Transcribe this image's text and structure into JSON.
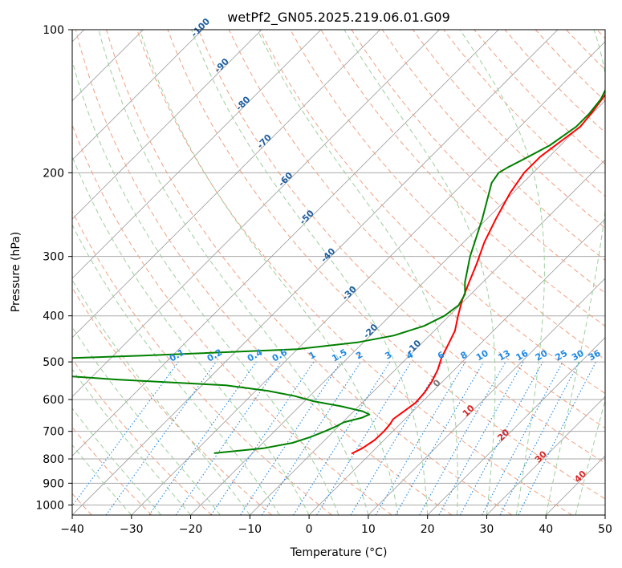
{
  "chart_data": {
    "type": "line",
    "title": "wetPf2_GN05.2025.219.06.01.G09",
    "xlabel": "Temperature (°C)",
    "ylabel": "Pressure (hPa)",
    "xlim": [
      -40,
      50
    ],
    "ylim": [
      1050,
      100
    ],
    "yscale": "log",
    "x_ticks": [
      "−40",
      "−30",
      "−20",
      "−10",
      "0",
      "10",
      "20",
      "30",
      "40",
      "50"
    ],
    "x_tick_values": [
      -40,
      -30,
      -20,
      -10,
      0,
      10,
      20,
      30,
      40,
      50
    ],
    "y_ticks": [
      "100",
      "200",
      "300",
      "400",
      "500",
      "600",
      "700",
      "800",
      "900",
      "1000"
    ],
    "y_tick_values": [
      100,
      200,
      300,
      400,
      500,
      600,
      700,
      800,
      900,
      1000
    ],
    "grid": true,
    "series": [
      {
        "color": "#ff0000",
        "points": [
          [
            780,
            -3.2
          ],
          [
            760,
            -2.3
          ],
          [
            730,
            -1.6
          ],
          [
            700,
            -1.5
          ],
          [
            675,
            -1.7
          ],
          [
            660,
            -2.0
          ],
          [
            640,
            -1.6
          ],
          [
            610,
            -1.0
          ],
          [
            580,
            -1.2
          ],
          [
            550,
            -1.8
          ],
          [
            520,
            -2.8
          ],
          [
            490,
            -4.2
          ],
          [
            460,
            -5.3
          ],
          [
            430,
            -6.5
          ],
          [
            400,
            -8.5
          ],
          [
            370,
            -10.5
          ],
          [
            340,
            -12.3
          ],
          [
            310,
            -14.2
          ],
          [
            280,
            -16.5
          ],
          [
            250,
            -18.5
          ],
          [
            220,
            -20.5
          ],
          [
            200,
            -21.5
          ],
          [
            185,
            -21.5
          ],
          [
            170,
            -20.5
          ],
          [
            160,
            -19.8
          ],
          [
            150,
            -20.2
          ],
          [
            140,
            -20.8
          ],
          [
            130,
            -21.5
          ],
          [
            120,
            -23.0
          ],
          [
            110,
            -24.8
          ],
          [
            100,
            -27.0
          ]
        ]
      },
      {
        "color": "#008000",
        "points": [
          [
            778,
            -26.5
          ],
          [
            760,
            -19.0
          ],
          [
            740,
            -15.0
          ],
          [
            720,
            -13.0
          ],
          [
            700,
            -11.5
          ],
          [
            685,
            -10.5
          ],
          [
            670,
            -9.8
          ],
          [
            655,
            -7.5
          ],
          [
            645,
            -6.8
          ],
          [
            635,
            -8.5
          ],
          [
            620,
            -13.0
          ],
          [
            605,
            -18.5
          ],
          [
            590,
            -22.5
          ],
          [
            575,
            -28.0
          ],
          [
            560,
            -36.0
          ],
          [
            545,
            -55.0
          ],
          [
            520,
            -80.0
          ],
          [
            510,
            -80.0
          ],
          [
            495,
            -75.0
          ],
          [
            485,
            -55.0
          ],
          [
            470,
            -30.0
          ],
          [
            455,
            -21.0
          ],
          [
            440,
            -16.0
          ],
          [
            420,
            -12.5
          ],
          [
            400,
            -10.8
          ],
          [
            380,
            -10.2
          ],
          [
            360,
            -11.0
          ],
          [
            340,
            -13.0
          ],
          [
            300,
            -16.5
          ],
          [
            250,
            -20.8
          ],
          [
            210,
            -25.3
          ],
          [
            200,
            -25.8
          ],
          [
            195,
            -25.2
          ],
          [
            185,
            -23.5
          ],
          [
            175,
            -21.8
          ],
          [
            160,
            -20.5
          ],
          [
            150,
            -20.5
          ],
          [
            140,
            -21.0
          ],
          [
            130,
            -22.3
          ],
          [
            120,
            -23.5
          ],
          [
            110,
            -25.0
          ],
          [
            100,
            -27.3
          ]
        ]
      }
    ],
    "dry_adiabat_labels": [
      "-100",
      "-90",
      "-80",
      "-70",
      "-60",
      "-50",
      "-40",
      "-30",
      "-20",
      "-10",
      "0",
      "10",
      "20",
      "30",
      "40"
    ],
    "mixing_ratio_labels": [
      "0.1",
      "0.2",
      "0.4",
      "0.6",
      "1",
      "1.5",
      "2",
      "3",
      "4",
      "6",
      "8",
      "10",
      "13",
      "16",
      "20",
      "25",
      "30",
      "36"
    ],
    "colors": {
      "temperature": "#ff0000",
      "dewpoint": "#008000",
      "dry_adiabat": "#f0a080",
      "moist_adiabat": "#9ccf9c",
      "mixing_ratio": "#1e88e5",
      "isotherm": "#999999",
      "isobar": "#aaaaaa",
      "label_dry_cold": "#1f5fa0",
      "label_warm": "#d62728"
    }
  }
}
